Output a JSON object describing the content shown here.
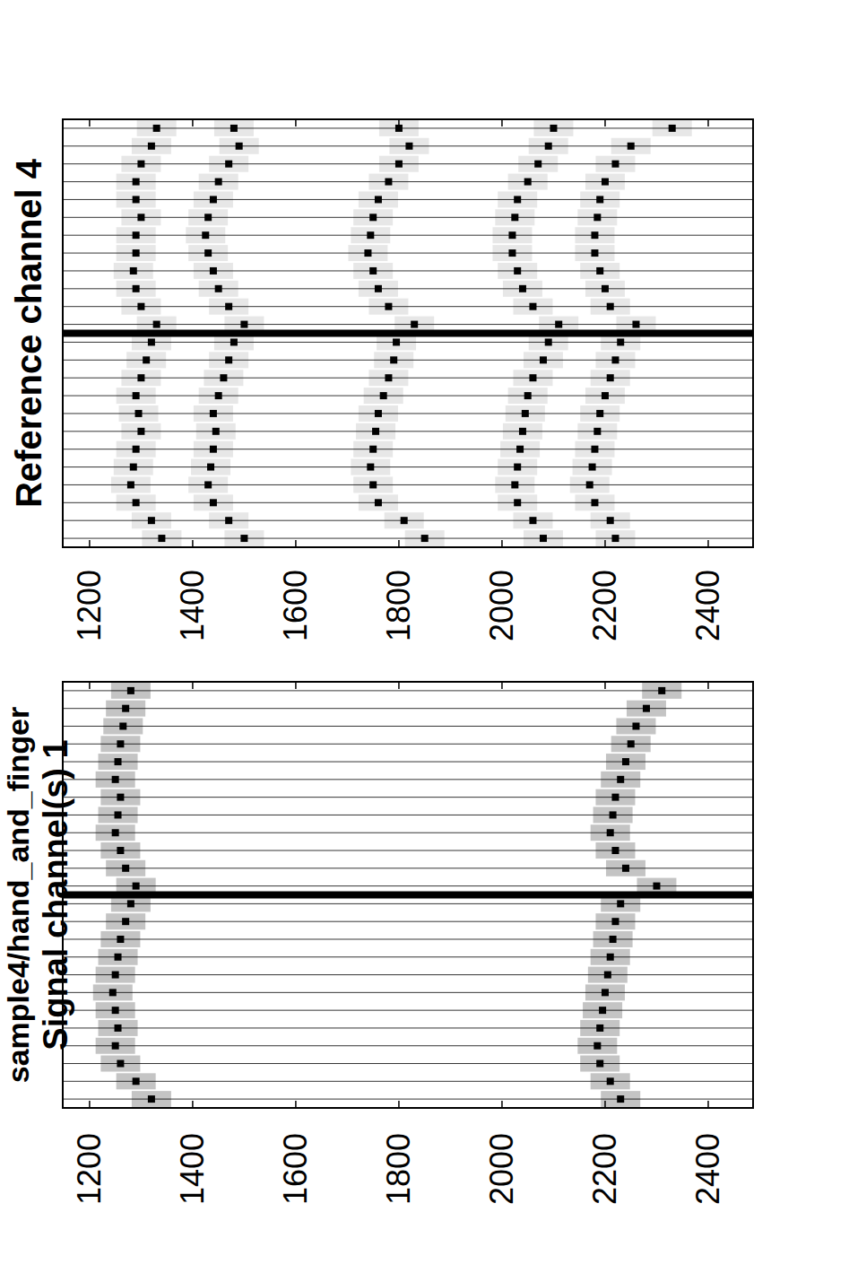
{
  "chart_data": [
    {
      "type": "scatter",
      "title": "Reference channel 4",
      "marker": "square",
      "x": [
        0,
        1,
        2,
        3,
        4,
        5,
        6,
        7,
        8,
        9,
        10,
        11,
        12,
        13,
        14,
        15,
        16,
        17,
        18,
        19,
        20,
        21,
        22,
        23
      ],
      "xlim": [
        -0.5,
        23.5
      ],
      "xticks": [
        0,
        1,
        2,
        3,
        4,
        5,
        6,
        7,
        8,
        9,
        10,
        11,
        12,
        13,
        14,
        15,
        16,
        17,
        18,
        19,
        20,
        21,
        22,
        23
      ],
      "ylim": [
        1148,
        2487
      ],
      "yticks": [
        1200,
        1400,
        1600,
        1800,
        2000,
        2200,
        2400
      ],
      "grid": true,
      "tick_labels": "y",
      "segment_boundaries": [
        11.5
      ],
      "series": [
        {
          "color": "#000000",
          "values": [
            1340,
            1320,
            1290,
            1280,
            1285,
            1290,
            1300,
            1295,
            1290,
            1300,
            1310,
            1320,
            1330,
            1300,
            1290,
            1285,
            1290,
            1290,
            1300,
            1290,
            1290,
            1300,
            1320,
            1330
          ]
        },
        {
          "color": "#000000",
          "values": [
            1500,
            1470,
            1440,
            1430,
            1435,
            1440,
            1445,
            1440,
            1450,
            1460,
            1470,
            1480,
            1500,
            1470,
            1450,
            1440,
            1430,
            1425,
            1430,
            1440,
            1450,
            1470,
            1490,
            1480
          ]
        },
        {
          "color": "#000000",
          "values": [
            1850,
            1810,
            1760,
            1750,
            1745,
            1750,
            1755,
            1760,
            1770,
            1780,
            1790,
            1795,
            1830,
            1780,
            1760,
            1750,
            1740,
            1745,
            1750,
            1760,
            1780,
            1800,
            1820,
            1800
          ]
        },
        {
          "color": "#000000",
          "values": [
            2080,
            2060,
            2030,
            2025,
            2030,
            2035,
            2040,
            2045,
            2050,
            2060,
            2080,
            2090,
            2110,
            2060,
            2040,
            2030,
            2020,
            2020,
            2025,
            2030,
            2050,
            2070,
            2090,
            2100
          ]
        },
        {
          "color": "#000000",
          "values": [
            2220,
            2210,
            2180,
            2170,
            2175,
            2180,
            2185,
            2190,
            2200,
            2210,
            2220,
            2230,
            2260,
            2210,
            2200,
            2190,
            2180,
            2180,
            2185,
            2190,
            2200,
            2220,
            2250,
            2330
          ]
        }
      ]
    },
    {
      "type": "scatter",
      "title": "sample4/hand_and_finger",
      "subtitle": "Signal channel(s) 1",
      "marker": "square",
      "x": [
        0,
        1,
        2,
        3,
        4,
        5,
        6,
        7,
        8,
        9,
        10,
        11,
        12,
        13,
        14,
        15,
        16,
        17,
        18,
        19,
        20,
        21,
        22,
        23
      ],
      "xlim": [
        -0.5,
        23.5
      ],
      "xticks": [
        0,
        1,
        2,
        3,
        4,
        5,
        6,
        7,
        8,
        9,
        10,
        11,
        12,
        13,
        14,
        15,
        16,
        17,
        18,
        19,
        20,
        21,
        22,
        23
      ],
      "ylim": [
        1148,
        2487
      ],
      "yticks": [
        1200,
        1400,
        1600,
        1800,
        2000,
        2200,
        2400
      ],
      "grid": true,
      "tick_labels": "y",
      "segment_boundaries": [
        11.5
      ],
      "series": [
        {
          "color": "#000000",
          "values": [
            1320,
            1290,
            1260,
            1250,
            1255,
            1250,
            1245,
            1250,
            1255,
            1260,
            1270,
            1280,
            1290,
            1270,
            1260,
            1250,
            1255,
            1260,
            1250,
            1255,
            1260,
            1265,
            1270,
            1280
          ]
        },
        {
          "color": "#000000",
          "values": [
            2230,
            2210,
            2190,
            2185,
            2190,
            2195,
            2200,
            2205,
            2210,
            2215,
            2220,
            2230,
            2300,
            2240,
            2220,
            2210,
            2215,
            2220,
            2230,
            2240,
            2250,
            2260,
            2280,
            2310
          ]
        }
      ]
    }
  ]
}
